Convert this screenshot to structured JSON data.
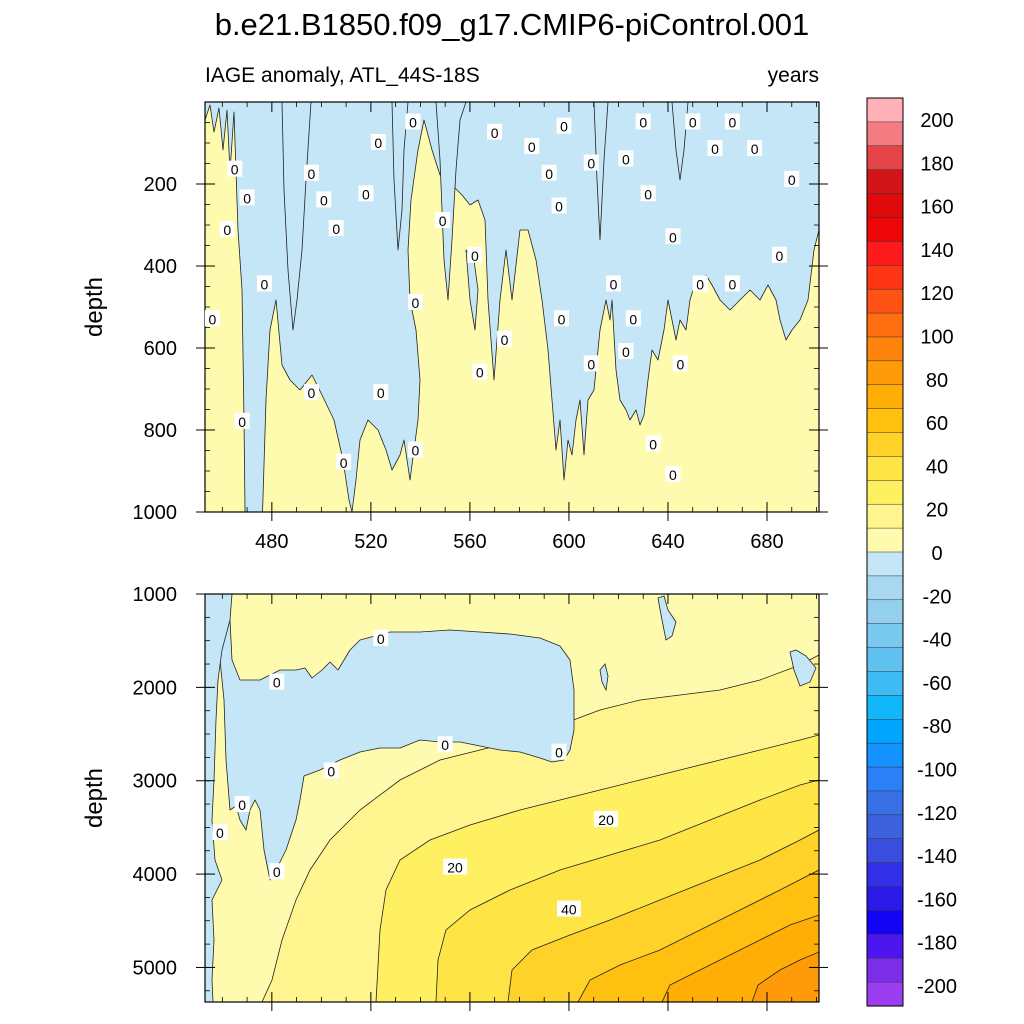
{
  "figure": {
    "title": "b.e21.B1850.f09_g17.CMIP6-piControl.001",
    "left_string": "IAGE anomaly, ATL_44S-18S",
    "right_string": "years"
  },
  "chart_data": [
    {
      "type": "heatmap",
      "panel": "upper",
      "ylabel": "depth",
      "xlim": [
        453,
        701
      ],
      "ylim": [
        0,
        1000
      ],
      "x_ticks": [
        480,
        520,
        560,
        600,
        640,
        680
      ],
      "x_tick_labels": [
        "480",
        "520",
        "560",
        "600",
        "640",
        "680"
      ],
      "y_ticks": [
        200,
        400,
        600,
        800,
        1000
      ],
      "y_tick_labels": [
        "200",
        "400",
        "600",
        "800",
        "1000"
      ],
      "contour_labels": [
        {
          "text": "0",
          "x": 456,
          "y": 530
        },
        {
          "text": "0",
          "x": 462,
          "y": 312
        },
        {
          "text": "0",
          "x": 465,
          "y": 165
        },
        {
          "text": "0",
          "x": 468,
          "y": 780
        },
        {
          "text": "0",
          "x": 470,
          "y": 235
        },
        {
          "text": "0",
          "x": 477,
          "y": 445
        },
        {
          "text": "0",
          "x": 496,
          "y": 175
        },
        {
          "text": "0",
          "x": 496,
          "y": 710
        },
        {
          "text": "0",
          "x": 501,
          "y": 240
        },
        {
          "text": "0",
          "x": 506,
          "y": 310
        },
        {
          "text": "0",
          "x": 509,
          "y": 880
        },
        {
          "text": "0",
          "x": 518,
          "y": 225
        },
        {
          "text": "0",
          "x": 523,
          "y": 100
        },
        {
          "text": "0",
          "x": 524,
          "y": 710
        },
        {
          "text": "0",
          "x": 537,
          "y": 50
        },
        {
          "text": "0",
          "x": 538,
          "y": 490
        },
        {
          "text": "0",
          "x": 538,
          "y": 850
        },
        {
          "text": "0",
          "x": 549,
          "y": 290
        },
        {
          "text": "0",
          "x": 562,
          "y": 375
        },
        {
          "text": "0",
          "x": 564,
          "y": 660
        },
        {
          "text": "0",
          "x": 570,
          "y": 75
        },
        {
          "text": "0",
          "x": 574,
          "y": 580
        },
        {
          "text": "0",
          "x": 585,
          "y": 110
        },
        {
          "text": "0",
          "x": 592,
          "y": 175
        },
        {
          "text": "0",
          "x": 596,
          "y": 255
        },
        {
          "text": "0",
          "x": 597,
          "y": 530
        },
        {
          "text": "0",
          "x": 598,
          "y": 60
        },
        {
          "text": "0",
          "x": 609,
          "y": 150
        },
        {
          "text": "0",
          "x": 609,
          "y": 640
        },
        {
          "text": "0",
          "x": 618,
          "y": 445
        },
        {
          "text": "0",
          "x": 623,
          "y": 140
        },
        {
          "text": "0",
          "x": 623,
          "y": 610
        },
        {
          "text": "0",
          "x": 626,
          "y": 530
        },
        {
          "text": "0",
          "x": 630,
          "y": 50
        },
        {
          "text": "0",
          "x": 632,
          "y": 225
        },
        {
          "text": "0",
          "x": 634,
          "y": 835
        },
        {
          "text": "0",
          "x": 642,
          "y": 330
        },
        {
          "text": "0",
          "x": 642,
          "y": 910
        },
        {
          "text": "0",
          "x": 645,
          "y": 640
        },
        {
          "text": "0",
          "x": 650,
          "y": 50
        },
        {
          "text": "0",
          "x": 653,
          "y": 445
        },
        {
          "text": "0",
          "x": 659,
          "y": 115
        },
        {
          "text": "0",
          "x": 666,
          "y": 50
        },
        {
          "text": "0",
          "x": 666,
          "y": 445
        },
        {
          "text": "0",
          "x": 675,
          "y": 115
        },
        {
          "text": "0",
          "x": 685,
          "y": 375
        },
        {
          "text": "0",
          "x": 690,
          "y": 190
        }
      ]
    },
    {
      "type": "heatmap",
      "panel": "lower",
      "ylabel": "depth",
      "xlim": [
        453,
        701
      ],
      "ylim": [
        1000,
        5370
      ],
      "x_ticks": [
        480,
        520,
        560,
        600,
        640,
        680
      ],
      "y_ticks": [
        1000,
        2000,
        3000,
        4000,
        5000
      ],
      "y_tick_labels": [
        "1000",
        "2000",
        "3000",
        "4000",
        "5000"
      ],
      "contour_labels": [
        {
          "text": "0",
          "x": 459,
          "y": 3560
        },
        {
          "text": "0",
          "x": 468,
          "y": 3260
        },
        {
          "text": "0",
          "x": 482,
          "y": 1950
        },
        {
          "text": "0",
          "x": 482,
          "y": 3980
        },
        {
          "text": "0",
          "x": 504,
          "y": 2900
        },
        {
          "text": "0",
          "x": 524,
          "y": 1480
        },
        {
          "text": "0",
          "x": 550,
          "y": 2620
        },
        {
          "text": "0",
          "x": 596,
          "y": 2700
        },
        {
          "text": "20",
          "x": 554,
          "y": 3930
        },
        {
          "text": "20",
          "x": 615,
          "y": 3420
        },
        {
          "text": "40",
          "x": 600,
          "y": 4380
        }
      ]
    }
  ],
  "colorbar": {
    "labels": [
      "200",
      "180",
      "160",
      "140",
      "120",
      "100",
      "80",
      "60",
      "40",
      "20",
      "0",
      "-20",
      "-40",
      "-60",
      "-80",
      "-100",
      "-120",
      "-140",
      "-160",
      "-180",
      "-200"
    ],
    "colors": [
      "#ffb1b7",
      "#f37b82",
      "#e44446",
      "#d21519",
      "#df0a0b",
      "#ed0708",
      "#ff1b1b",
      "#ff3615",
      "#ff5215",
      "#ff6e11",
      "#ff840d",
      "#ff9a09",
      "#ffae05",
      "#ffc00f",
      "#ffd22a",
      "#ffe445",
      "#fff062",
      "#fff48e",
      "#fffbae",
      "#c5e6f7",
      "#a8d8ef",
      "#93d0ee",
      "#79c8ee",
      "#5fc2f0",
      "#3fbcf4",
      "#11b7f9",
      "#00a5fe",
      "#1492ff",
      "#2a80f4",
      "#3870e6",
      "#3d60dc",
      "#3a4ddf",
      "#322fe6",
      "#2a1ae8",
      "#1404f4",
      "#4e16ee",
      "#7b2de8",
      "#9a3ef0"
    ]
  }
}
